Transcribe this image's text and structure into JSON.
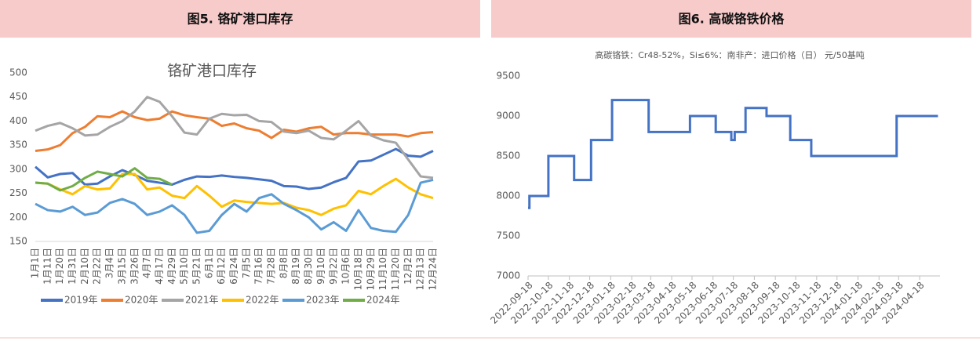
{
  "headers": [
    "图5. 铬矿港口库存",
    "图6. 高碳铬铁价格"
  ],
  "chart_data": [
    {
      "type": "line",
      "title": "铬矿港口库存",
      "categories": [
        "1月1日",
        "1月11日",
        "1月20日",
        "1月31日",
        "2月10日",
        "2月22日",
        "3月4日",
        "3月15日",
        "3月26日",
        "4月7日",
        "4月17日",
        "4月29日",
        "5月10日",
        "5月21日",
        "6月1日",
        "6月12日",
        "6月24日",
        "7月5日",
        "7月16日",
        "7月28日",
        "8月8日",
        "8月19日",
        "8月30日",
        "9月10日",
        "9月22日",
        "10月6日",
        "10月18日",
        "10月29日",
        "11月10日",
        "11月20日",
        "12月2日",
        "12月13日",
        "12月24日"
      ],
      "series": [
        {
          "name": "2019年",
          "color": "#4472c4",
          "values": [
            305,
            283,
            290,
            292,
            268,
            270,
            285,
            298,
            288,
            276,
            272,
            268,
            278,
            285,
            284,
            287,
            284,
            282,
            279,
            276,
            265,
            264,
            259,
            262,
            273,
            282,
            316,
            318,
            330,
            342,
            328,
            326,
            338
          ]
        },
        {
          "name": "2020年",
          "color": "#ed7d31",
          "values": [
            338,
            341,
            350,
            375,
            388,
            410,
            408,
            420,
            408,
            402,
            405,
            420,
            412,
            408,
            405,
            390,
            395,
            385,
            380,
            365,
            382,
            378,
            385,
            388,
            372,
            375,
            375,
            372,
            372,
            372,
            368,
            375,
            377
          ]
        },
        {
          "name": "2021年",
          "color": "#a5a5a5",
          "values": [
            380,
            390,
            396,
            385,
            370,
            372,
            388,
            400,
            420,
            450,
            440,
            410,
            376,
            372,
            405,
            415,
            412,
            413,
            400,
            398,
            378,
            375,
            380,
            365,
            362,
            380,
            400,
            370,
            360,
            355,
            320,
            285,
            282
          ]
        },
        {
          "name": "2022年",
          "color": "#ffc000",
          "values": [
            272,
            270,
            258,
            248,
            265,
            258,
            260,
            290,
            290,
            258,
            262,
            245,
            240,
            265,
            245,
            222,
            235,
            232,
            230,
            228,
            230,
            220,
            215,
            205,
            218,
            225,
            255,
            248,
            265,
            280,
            262,
            248,
            240
          ]
        },
        {
          "name": "2023年",
          "color": "#5b9bd5",
          "values": [
            228,
            215,
            212,
            222,
            205,
            210,
            230,
            238,
            228,
            205,
            212,
            225,
            205,
            168,
            172,
            205,
            228,
            212,
            240,
            248,
            228,
            215,
            200,
            175,
            190,
            172,
            215,
            178,
            172,
            170,
            205,
            272,
            278
          ]
        },
        {
          "name": "2024年",
          "color": "#70ad47",
          "values": [
            272,
            270,
            256,
            265,
            282,
            295,
            290,
            285,
            302,
            282,
            280,
            268,
            null,
            null,
            null,
            null,
            null,
            null,
            null,
            null,
            null,
            null,
            null,
            null,
            null,
            null,
            null,
            null,
            null,
            null,
            null,
            null,
            null
          ]
        }
      ],
      "ylim": [
        150,
        500
      ],
      "yticks": [
        150,
        200,
        250,
        300,
        350,
        400,
        450,
        500
      ],
      "legend": "bottom"
    },
    {
      "type": "step",
      "title": "高碳铬铁：Cr48-52%，Si≤6%：南非产：进口价格（日） 元/50基吨",
      "x": [
        "2022-09-18",
        "2022-09-20",
        "2022-10-18",
        "2022-11-25",
        "2022-12-20",
        "2023-01-20",
        "2023-03-15",
        "2023-05-15",
        "2023-06-22",
        "2023-07-15",
        "2023-07-20",
        "2023-08-05",
        "2023-09-05",
        "2023-10-10",
        "2023-11-10",
        "2024-03-15",
        "2024-05-15"
      ],
      "series": [
        {
          "color": "#4472c4",
          "values": [
            7850,
            8000,
            8500,
            8200,
            8700,
            9200,
            8800,
            9000,
            8800,
            8700,
            8800,
            9100,
            9000,
            8700,
            8500,
            9000,
            9000
          ]
        }
      ],
      "xlim": [
        "2022-09-18",
        "2024-05-18"
      ],
      "xticks": [
        "2022-09-18",
        "2022-10-18",
        "2022-11-18",
        "2022-12-18",
        "2023-01-18",
        "2023-02-18",
        "2023-03-18",
        "2023-04-18",
        "2023-05-18",
        "2023-06-18",
        "2023-07-18",
        "2023-08-18",
        "2023-09-18",
        "2023-10-18",
        "2023-11-18",
        "2023-12-18",
        "2024-01-18",
        "2024-02-18",
        "2024-03-18",
        "2024-04-18"
      ],
      "ylim": [
        7000,
        9500
      ],
      "yticks": [
        7000,
        7500,
        8000,
        8500,
        9000,
        9500
      ]
    }
  ]
}
